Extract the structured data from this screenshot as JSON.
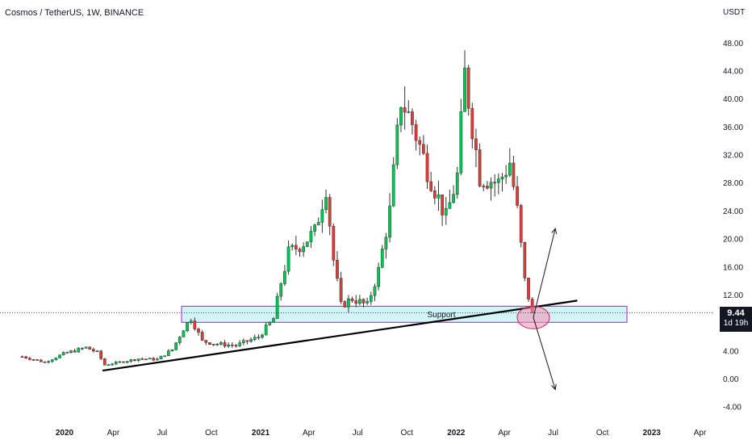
{
  "header": {
    "title": "Cosmos / TetherUS, 1W, BINANCE",
    "unit": "USDT"
  },
  "price_badge": {
    "price": "9.44",
    "countdown": "1d 19h"
  },
  "annotations": {
    "support_label": "Support"
  },
  "colors": {
    "up": "#26a69a",
    "up_body": "#00c853",
    "down": "#e53935",
    "support_fill": "#d1f4f8",
    "support_border": "#9c27b0",
    "circle_fill": "#f48fb1",
    "trendline": "#000000"
  },
  "chart_data": {
    "type": "candlestick",
    "title": "Cosmos / TetherUS, 1W, BINANCE",
    "ylabel": "USDT",
    "ylim": [
      -4,
      52
    ],
    "y_ticks": [
      "48.00",
      "44.00",
      "40.00",
      "36.00",
      "32.00",
      "28.00",
      "24.00",
      "20.00",
      "16.00",
      "12.00",
      "8.00",
      "4.00",
      "0.00",
      "-4.00"
    ],
    "x_ticks": [
      "2020",
      "Apr",
      "Jul",
      "Oct",
      "2021",
      "Apr",
      "Jul",
      "Oct",
      "2022",
      "Apr",
      "Jul",
      "Oct",
      "2023",
      "Apr"
    ],
    "last_price": 9.44,
    "support_zone": [
      8.1,
      10.4
    ],
    "trendline": [
      {
        "date": "2020-03-12",
        "price": 1.2
      },
      {
        "date": "2022-08-15",
        "price": 11.2
      }
    ],
    "projections": [
      {
        "from": {
          "date": "2022-05-25",
          "price": 8.8
        },
        "to": {
          "date": "2022-07-05",
          "price": 21.5
        }
      },
      {
        "from": {
          "date": "2022-05-25",
          "price": 8.8
        },
        "to": {
          "date": "2022-07-05",
          "price": -1.5
        }
      }
    ],
    "price_path": [
      [
        "2019-10-14",
        3.2
      ],
      [
        "2019-11-25",
        2.4
      ],
      [
        "2019-12-30",
        3.6
      ],
      [
        "2020-02-10",
        4.5
      ],
      [
        "2020-03-02",
        3.8
      ],
      [
        "2020-03-16",
        2.0
      ],
      [
        "2020-04-13",
        2.4
      ],
      [
        "2020-05-18",
        2.9
      ],
      [
        "2020-06-22",
        2.8
      ],
      [
        "2020-07-20",
        4.2
      ],
      [
        "2020-08-10",
        7.2
      ],
      [
        "2020-08-24",
        8.7
      ],
      [
        "2020-09-14",
        5.4
      ],
      [
        "2020-10-12",
        5.0
      ],
      [
        "2020-11-16",
        4.8
      ],
      [
        "2020-12-28",
        6.0
      ],
      [
        "2021-01-25",
        8.6
      ],
      [
        "2021-02-08",
        13.8
      ],
      [
        "2021-02-22",
        18.0
      ],
      [
        "2021-03-22",
        19.5
      ],
      [
        "2021-04-12",
        21.0
      ],
      [
        "2021-05-03",
        27.5
      ],
      [
        "2021-05-17",
        17.0
      ],
      [
        "2021-05-31",
        10.5
      ],
      [
        "2021-06-21",
        11.5
      ],
      [
        "2021-07-19",
        10.5
      ],
      [
        "2021-08-09",
        15.5
      ],
      [
        "2021-08-30",
        24.0
      ],
      [
        "2021-09-20",
        40.0
      ],
      [
        "2021-10-11",
        36.5
      ],
      [
        "2021-11-08",
        30.0
      ],
      [
        "2021-12-13",
        23.0
      ],
      [
        "2022-01-03",
        29.0
      ],
      [
        "2022-01-17",
        43.5
      ],
      [
        "2022-02-14",
        29.0
      ],
      [
        "2022-03-21",
        28.0
      ],
      [
        "2022-04-11",
        31.0
      ],
      [
        "2022-04-25",
        24.0
      ],
      [
        "2022-05-09",
        14.0
      ],
      [
        "2022-05-23",
        9.44
      ]
    ]
  }
}
